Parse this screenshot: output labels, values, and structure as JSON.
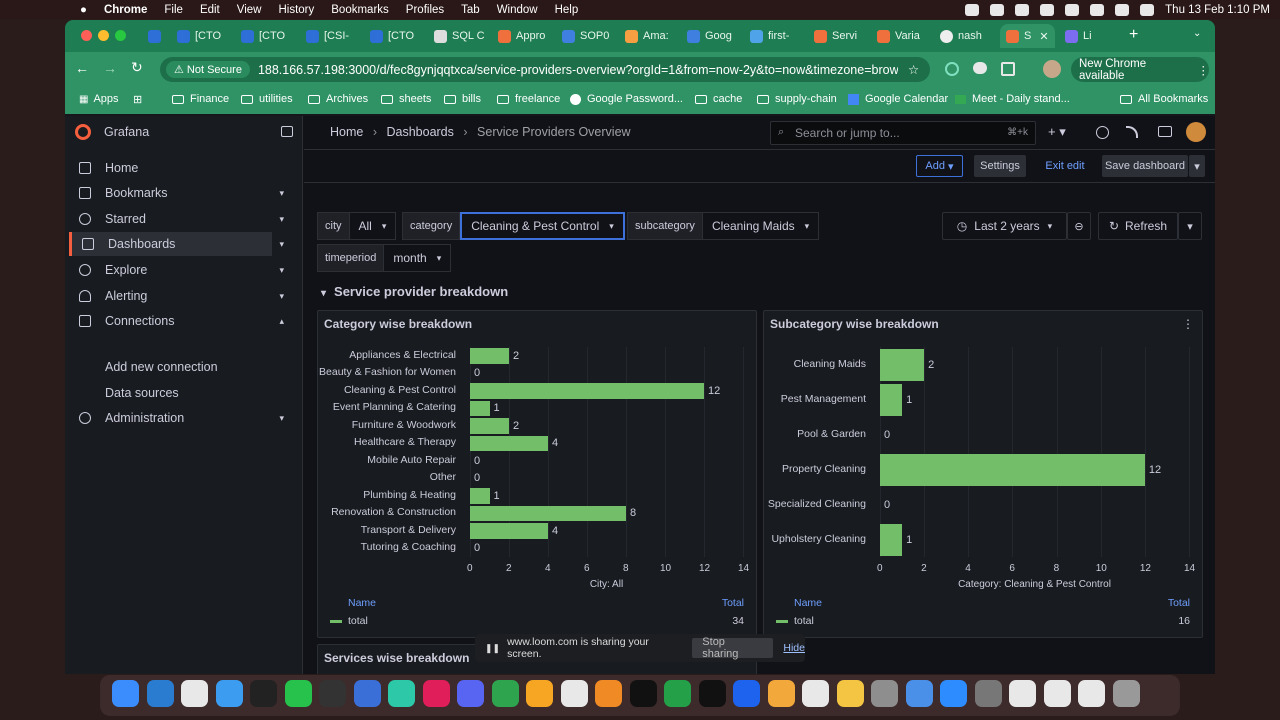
{
  "menubar": {
    "app_name": "Chrome",
    "menus": [
      "File",
      "Edit",
      "View",
      "History",
      "Bookmarks",
      "Profiles",
      "Tab",
      "Window",
      "Help"
    ],
    "clock": "Thu 13 Feb  1:10 PM"
  },
  "browser": {
    "tabs": [
      "[CTO",
      "[CTO",
      "[CSI-",
      "[CTO",
      "SQL C",
      "Appro",
      "SOP0",
      "Ama:",
      "Goog",
      "first-",
      "Servi",
      "Varia",
      "nash",
      "S",
      "Li"
    ],
    "url": "188.166.57.198:3000/d/fec8gynjqqtxca/service-providers-overview?orgId=1&from=now-2y&to=now&timezone=browser...",
    "security_label": "Not Secure",
    "update_label": "New Chrome available",
    "bookmarks": [
      "Apps",
      "Finance",
      "utilities",
      "Archives",
      "sheets",
      "bills",
      "freelance",
      "Google Password...",
      "cache",
      "supply-chain",
      "Google Calendar",
      "Meet - Daily stand..."
    ],
    "all_bookmarks": "All Bookmarks"
  },
  "grafana": {
    "brand": "Grafana",
    "nav": [
      {
        "label": "Home"
      },
      {
        "label": "Bookmarks"
      },
      {
        "label": "Starred"
      },
      {
        "label": "Dashboards"
      },
      {
        "label": "Explore"
      },
      {
        "label": "Alerting"
      },
      {
        "label": "Connections"
      },
      {
        "label": "Add new connection"
      },
      {
        "label": "Data sources"
      },
      {
        "label": "Administration"
      }
    ],
    "breadcrumb": [
      "Home",
      "Dashboards",
      "Service Providers Overview"
    ],
    "search_placeholder": "Search or jump to...",
    "search_shortcut": "⌘+k",
    "actions": {
      "add": "Add",
      "settings": "Settings",
      "exit_edit": "Exit edit",
      "save": "Save dashboard"
    },
    "variables": [
      {
        "label": "city",
        "value": "All"
      },
      {
        "label": "category",
        "value": "Cleaning & Pest Control"
      },
      {
        "label": "subcategory",
        "value": "Cleaning Maids"
      },
      {
        "label": "timeperiod",
        "value": "month"
      }
    ],
    "time_range": "Last 2 years",
    "refresh": "Refresh",
    "row_title": "Service provider breakdown",
    "bottom_panel_title": "Services wise breakdown"
  },
  "chart_data": [
    {
      "type": "bar",
      "orientation": "horizontal",
      "title": "Category wise breakdown",
      "categories": [
        "Appliances & Electrical",
        "Beauty & Fashion for Women",
        "Cleaning & Pest Control",
        "Event Planning & Catering",
        "Furniture & Woodwork",
        "Healthcare & Therapy",
        "Mobile Auto Repair",
        "Other",
        "Plumbing & Heating",
        "Renovation & Construction",
        "Transport & Delivery",
        "Tutoring & Coaching"
      ],
      "values": [
        2,
        0,
        12,
        1,
        2,
        4,
        0,
        0,
        1,
        8,
        4,
        0
      ],
      "xticks": [
        "0",
        "2",
        "4",
        "6",
        "8",
        "10",
        "12",
        "14"
      ],
      "xlim": [
        0,
        14
      ],
      "xlabel": "City: All",
      "color": "#73bf69",
      "legend": {
        "name_header": "Name",
        "total_header": "Total",
        "series": "total",
        "total": "34"
      }
    },
    {
      "type": "bar",
      "orientation": "horizontal",
      "title": "Subcategory wise breakdown",
      "categories": [
        "Cleaning Maids",
        "Pest Management",
        "Pool & Garden",
        "Property Cleaning",
        "Specialized Cleaning",
        "Upholstery Cleaning"
      ],
      "values": [
        2,
        1,
        0,
        12,
        0,
        1
      ],
      "xticks": [
        "0",
        "2",
        "4",
        "6",
        "8",
        "10",
        "12",
        "14"
      ],
      "xlim": [
        0,
        14
      ],
      "xlabel": "Category: Cleaning & Pest Control",
      "color": "#73bf69",
      "legend": {
        "name_header": "Name",
        "total_header": "Total",
        "series": "total",
        "total": "16"
      }
    }
  ],
  "loom": {
    "message": "www.loom.com is sharing your screen.",
    "stop": "Stop sharing",
    "hide": "Hide"
  }
}
